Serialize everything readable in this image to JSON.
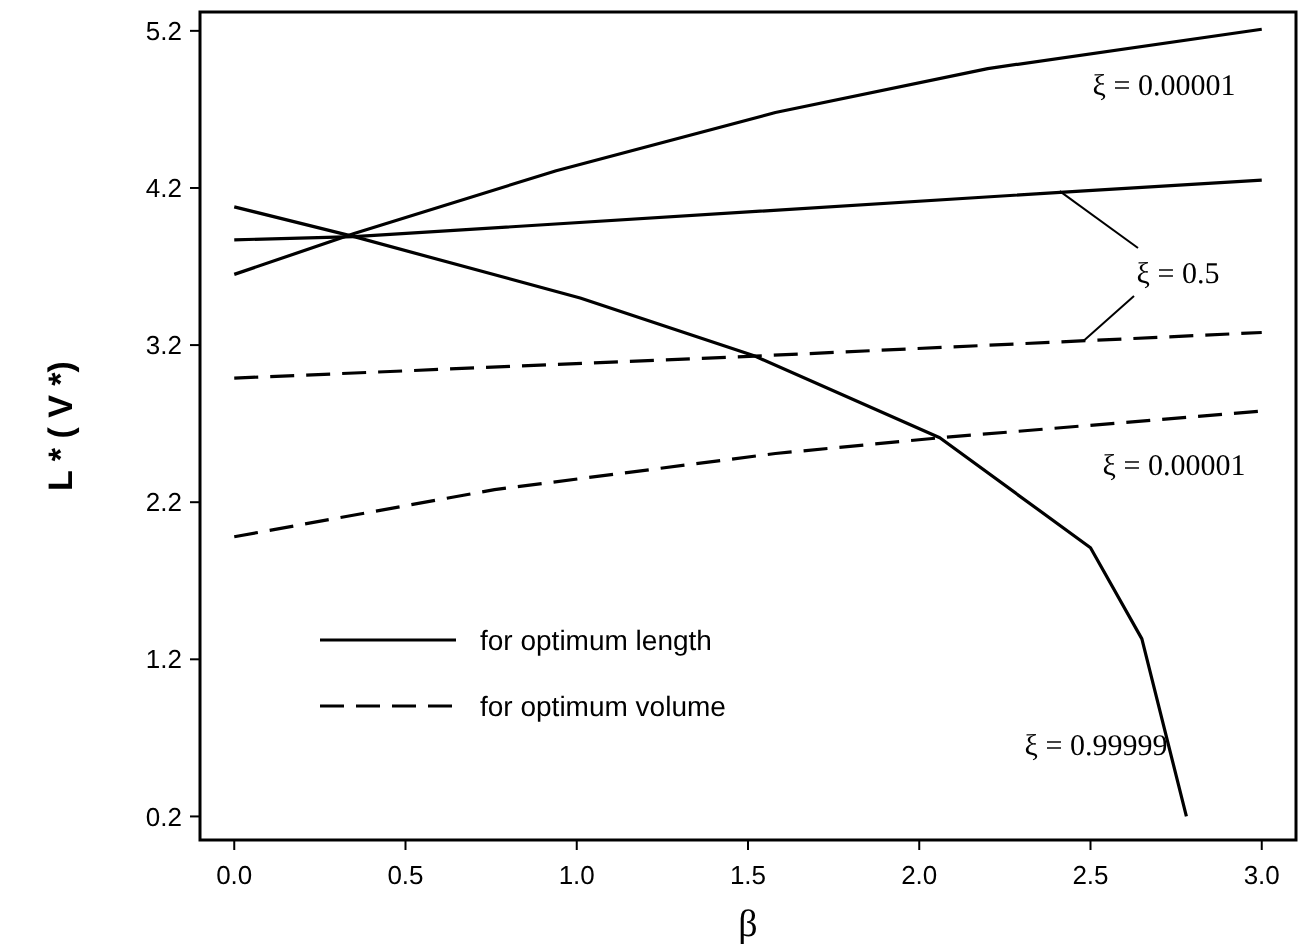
{
  "chart_data": {
    "type": "line",
    "xlabel": "β",
    "ylabel": "L * ( V *)",
    "xlim": [
      -0.1,
      3.1
    ],
    "ylim": [
      0.05,
      5.32
    ],
    "xticks": [
      {
        "value": 0,
        "label": "0.0"
      },
      0.5,
      {
        "value": 1,
        "label": "1.0"
      },
      1.5,
      {
        "value": 2,
        "label": "2.0"
      },
      2.5,
      {
        "value": 3,
        "label": "3.0"
      }
    ],
    "yticks": [
      0.2,
      1.2,
      2.2,
      3.2,
      4.2,
      5.2
    ],
    "grid": false,
    "legend": "bottom left",
    "marker": "none",
    "series": [
      {
        "name": "for optimum length",
        "color": "#000000",
        "line_style": "solid",
        "x": [
          0,
          0.35,
          0.94,
          1.58,
          2.2,
          3.0
        ],
        "values": [
          3.65,
          3.91,
          4.31,
          4.68,
          4.96,
          5.21
        ]
      },
      {
        "color": "#000000",
        "line_style": "solid",
        "x": [
          0,
          0.35,
          2.47,
          3.0
        ],
        "values": [
          3.87,
          3.89,
          4.18,
          4.25
        ]
      },
      {
        "color": "#000000",
        "line_style": "solid",
        "x": [
          0,
          0.35,
          1.01,
          1.52,
          2.06,
          2.5,
          2.65,
          2.78
        ],
        "values": [
          4.08,
          3.89,
          3.5,
          3.13,
          2.61,
          1.91,
          1.33,
          0.2
        ]
      },
      {
        "name": "for optimum volume",
        "color": "#000000",
        "line_style": "dashed",
        "x": [
          0,
          1.52,
          3.0
        ],
        "values": [
          2.99,
          3.13,
          3.28
        ]
      },
      {
        "color": "#000000",
        "line_style": "dashed",
        "x": [
          0,
          0.76,
          1.58,
          2.06,
          3.0
        ],
        "values": [
          1.98,
          2.28,
          2.51,
          2.61,
          2.78
        ]
      }
    ],
    "annotations": [
      "ξ = 0.00001",
      {
        "text": "ξ = 0.5",
        "x": 2.41,
        "y": 4.18
      },
      "ξ = 0.00001",
      "ξ = 0.99999"
    ]
  }
}
